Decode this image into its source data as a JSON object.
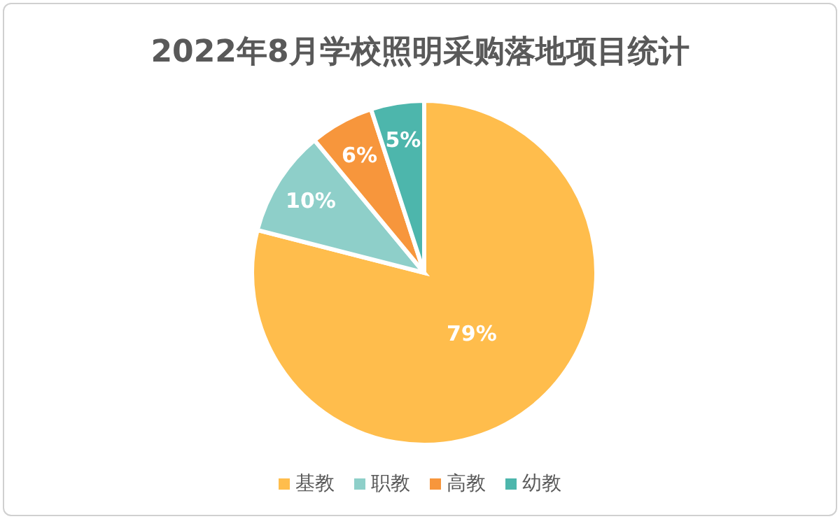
{
  "chart_data": {
    "type": "pie",
    "title": "2022年8月学校照明采购落地项目统计",
    "categories": [
      "基教",
      "职教",
      "高教",
      "幼教"
    ],
    "values": [
      79,
      10,
      6,
      5
    ],
    "colors": [
      "#ffbd4c",
      "#8ecfc9",
      "#f7963c",
      "#4db6ac"
    ],
    "value_labels": [
      "79%",
      "10%",
      "6%",
      "5%"
    ],
    "legend": "bottom"
  }
}
